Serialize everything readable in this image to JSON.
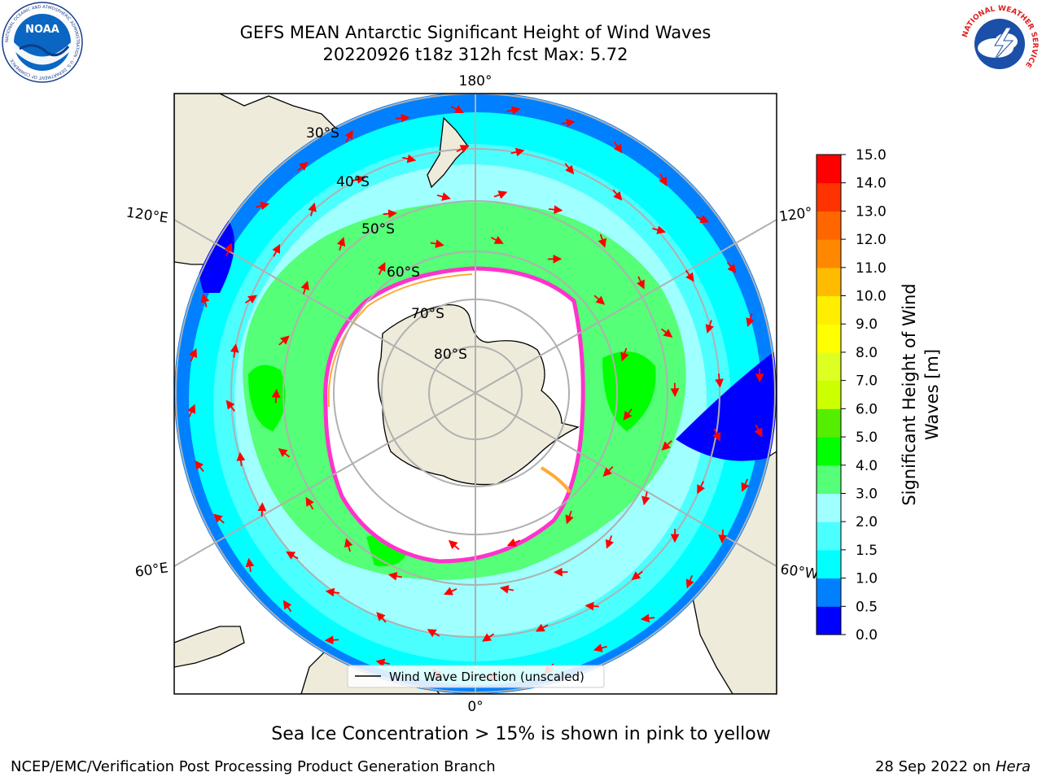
{
  "title": {
    "line1": "GEFS MEAN Antarctic Significant Height of Wind Waves",
    "line2": "20220926 t18z 312h fcst   Max: 5.72"
  },
  "logos": {
    "noaa_text": "NOAA",
    "noaa_ring": "NATIONAL OCEANIC AND ATMOSPHERIC ADMINISTRATION · U.S. DEPARTMENT OF COMMERCE",
    "nws_ring": "NATIONAL WEATHER SERVICE"
  },
  "map": {
    "projection": "south-polar-stereographic",
    "longitude_labels": [
      "180°",
      "120°E",
      "120°",
      "60°E",
      "60°W",
      "0°"
    ],
    "latitude_labels": [
      "30°S",
      "40°S",
      "50°S",
      "60°S",
      "70°S",
      "80°S"
    ],
    "legend_label": "Wind Wave Direction (unscaled)",
    "arrow_color": "#ff0000",
    "land_color": "#efebdb",
    "sea_ice_colors": [
      "#ff33cc",
      "#ffaa33",
      "#ffee44"
    ]
  },
  "colorbar": {
    "label": "Significant Height of Wind Waves [m]",
    "ticks": [
      "0.0",
      "0.5",
      "1.0",
      "1.5",
      "2.0",
      "3.0",
      "4.0",
      "5.0",
      "6.0",
      "7.0",
      "8.0",
      "9.0",
      "10.0",
      "11.0",
      "12.0",
      "13.0",
      "14.0",
      "15.0"
    ],
    "colors": [
      "#0000ff",
      "#0080ff",
      "#00ffff",
      "#4cffff",
      "#a0ffff",
      "#55ff77",
      "#00ff00",
      "#55ee00",
      "#ccff00",
      "#ddff22",
      "#ffff00",
      "#ffee00",
      "#ffbb00",
      "#ff8800",
      "#ff6600",
      "#ff3300",
      "#ff0000"
    ]
  },
  "caption": "Sea Ice Concentration > 15% is shown in pink to yellow",
  "footer": {
    "branch": "NCEP/EMC/Verification Post Processing Product Generation Branch",
    "date": "28 Sep 2022 on",
    "machine": "Hera"
  }
}
